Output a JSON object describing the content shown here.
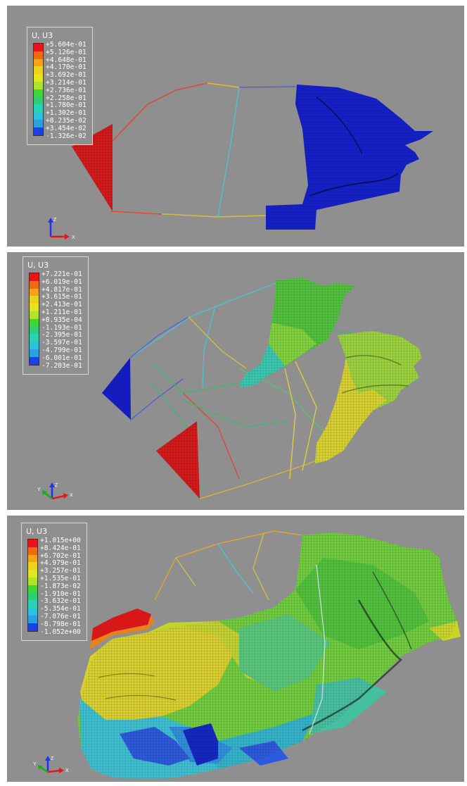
{
  "legends": [
    {
      "title": "U, U3",
      "values": [
        "+5.604e-01",
        "+5.126e-01",
        "+4.648e-01",
        "+4.170e-01",
        "+3.692e-01",
        "+3.214e-01",
        "+2.736e-01",
        "+2.258e-01",
        "+1.780e-01",
        "+1.302e-01",
        "+8.235e-02",
        "+3.454e-02",
        "-1.326e-02"
      ],
      "colors": [
        "#e8141a",
        "#f06a14",
        "#f5a418",
        "#ecd21c",
        "#e3e61f",
        "#aee32a",
        "#3fd63a",
        "#2ecf74",
        "#2bd3b6",
        "#2ac2dc",
        "#2a9fe2",
        "#1f3fe6"
      ]
    },
    {
      "title": "U, U3",
      "values": [
        "+7.221e-01",
        "+6.019e-01",
        "+4.817e-01",
        "+3.615e-01",
        "+2.413e-01",
        "+1.211e-01",
        "+8.935e-04",
        "-1.193e-01",
        "-2.395e-01",
        "-3.597e-01",
        "-4.799e-01",
        "-6.001e-01",
        "-7.203e-01"
      ],
      "colors": [
        "#e8141a",
        "#f06a14",
        "#f5a418",
        "#ecd21c",
        "#e3e61f",
        "#aee32a",
        "#3fd63a",
        "#2ecf74",
        "#2bd3b6",
        "#2ac2dc",
        "#2a9fe2",
        "#1f3fe6"
      ]
    },
    {
      "title": "U, U3",
      "values": [
        "+1.015e+00",
        "+8.424e-01",
        "+6.702e-01",
        "+4.979e-01",
        "+3.257e-01",
        "+1.535e-01",
        "-1.873e-02",
        "-1.910e-01",
        "-3.632e-01",
        "-5.354e-01",
        "-7.076e-01",
        "-8.798e-01",
        "-1.052e+00"
      ],
      "colors": [
        "#e8141a",
        "#f06a14",
        "#f5a418",
        "#ecd21c",
        "#e3e61f",
        "#aee32a",
        "#3fd63a",
        "#2ecf74",
        "#2bd3b6",
        "#2ac2dc",
        "#2a9fe2",
        "#1f3fe6"
      ]
    }
  ],
  "triads": [
    {
      "labels": [
        "Z",
        "X"
      ]
    },
    {
      "labels": [
        "Y",
        "Z",
        "X"
      ]
    },
    {
      "labels": [
        "Y",
        "Z",
        "X"
      ]
    }
  ],
  "colors": {
    "background": "#8f8f8f",
    "red": "#e0181c",
    "blue": "#1428c8",
    "green": "#3bb33b",
    "yellow": "#d8cc28",
    "cyan": "#3cc8d8"
  }
}
